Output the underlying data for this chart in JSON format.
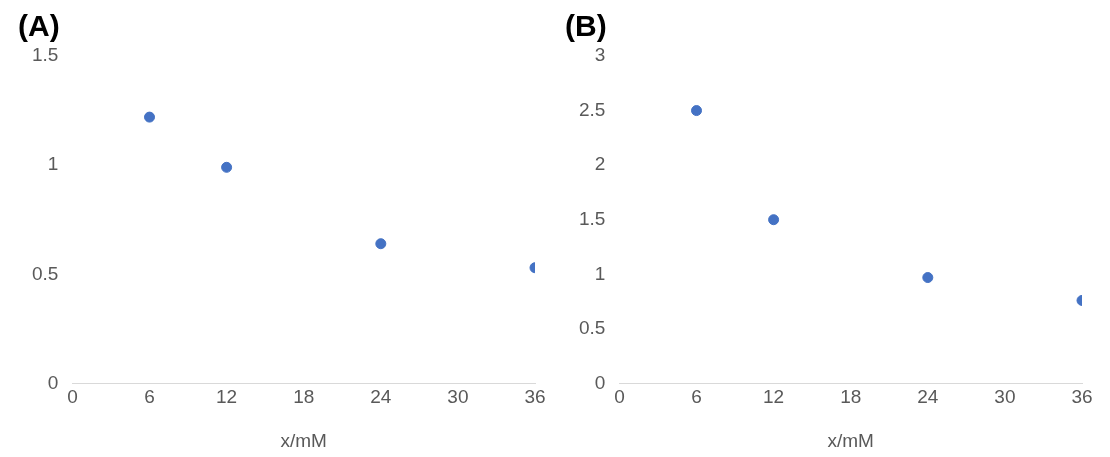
{
  "chart_data": [
    {
      "type": "scatter",
      "title": "(A)",
      "xlabel": "x/mM",
      "x": [
        6,
        12,
        24,
        36
      ],
      "values": [
        1.22,
        0.99,
        0.64,
        0.53
      ],
      "color": "#4472c4",
      "marker": "circle",
      "xlim": [
        0,
        36
      ],
      "xticks": [
        0,
        6,
        12,
        18,
        24,
        30,
        36
      ],
      "ylim": [
        0,
        1.5
      ],
      "yticks": [
        0,
        0.5,
        1,
        1.5
      ]
    },
    {
      "type": "scatter",
      "title": "(B)",
      "xlabel": "x/mM",
      "x": [
        6,
        12,
        24,
        36
      ],
      "values": [
        2.5,
        1.5,
        0.97,
        0.76
      ],
      "color": "#4472c4",
      "marker": "circle",
      "xlim": [
        0,
        36
      ],
      "xticks": [
        0,
        6,
        12,
        18,
        24,
        30,
        36
      ],
      "ylim": [
        0,
        3
      ],
      "yticks": [
        0,
        0.5,
        1,
        1.5,
        2,
        2.5,
        3
      ]
    }
  ]
}
